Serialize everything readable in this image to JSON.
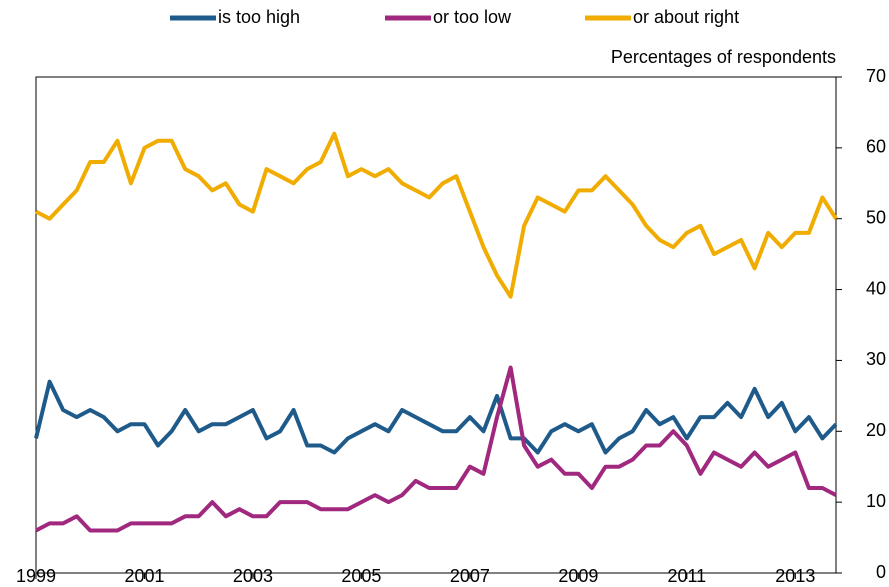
{
  "chart_data": {
    "type": "line",
    "y_label": "Percentages  of respondents",
    "x": [
      1999,
      1999.25,
      1999.5,
      1999.75,
      2000,
      2000.25,
      2000.5,
      2000.75,
      2001,
      2001.25,
      2001.5,
      2001.75,
      2002,
      2002.25,
      2002.5,
      2002.75,
      2003,
      2003.25,
      2003.5,
      2003.75,
      2004,
      2004.25,
      2004.5,
      2004.75,
      2005,
      2005.25,
      2005.5,
      2005.75,
      2006,
      2006.25,
      2006.5,
      2006.75,
      2007,
      2007.25,
      2007.5,
      2007.75,
      2008,
      2008.25,
      2008.5,
      2008.75,
      2009,
      2009.25,
      2009.5,
      2009.75,
      2010,
      2010.25,
      2010.5,
      2010.75,
      2011,
      2011.25,
      2011.5,
      2011.75,
      2012,
      2012.25,
      2012.5,
      2012.75,
      2013,
      2013.25,
      2013.5,
      2013.75
    ],
    "series": [
      {
        "name": "is too high",
        "color": "#1f5b8a",
        "values": [
          19,
          27,
          23,
          22,
          23,
          22,
          20,
          21,
          21,
          18,
          20,
          23,
          20,
          21,
          21,
          22,
          23,
          19,
          20,
          23,
          18,
          18,
          17,
          19,
          20,
          21,
          20,
          23,
          22,
          21,
          20,
          20,
          22,
          20,
          25,
          19,
          19,
          17,
          20,
          21,
          20,
          21,
          17,
          19,
          20,
          23,
          21,
          22,
          19,
          22,
          22,
          24,
          22,
          26,
          22,
          24,
          20,
          22,
          19,
          21
        ]
      },
      {
        "name": "or too low",
        "color": "#a0287f",
        "values": [
          6,
          7,
          7,
          8,
          6,
          6,
          6,
          7,
          7,
          7,
          7,
          8,
          8,
          10,
          8,
          9,
          8,
          8,
          10,
          10,
          10,
          9,
          9,
          9,
          10,
          11,
          10,
          11,
          13,
          12,
          12,
          12,
          15,
          14,
          22,
          29,
          18,
          15,
          16,
          14,
          14,
          12,
          15,
          15,
          16,
          18,
          18,
          20,
          18,
          14,
          17,
          16,
          15,
          17,
          15,
          16,
          17,
          12,
          12,
          11
        ]
      },
      {
        "name": "or about right",
        "color": "#f0ac00",
        "values": [
          51,
          50,
          52,
          54,
          58,
          58,
          61,
          55,
          60,
          61,
          61,
          57,
          56,
          54,
          55,
          52,
          51,
          57,
          56,
          55,
          57,
          58,
          62,
          56,
          57,
          56,
          57,
          55,
          54,
          53,
          55,
          56,
          51,
          46,
          42,
          39,
          49,
          53,
          52,
          51,
          54,
          54,
          56,
          54,
          52,
          49,
          47,
          46,
          48,
          49,
          45,
          46,
          47,
          43,
          48,
          46,
          48,
          48,
          53,
          50
        ]
      }
    ],
    "xlim": [
      1999,
      2013.75
    ],
    "xticks": [
      1999,
      2001,
      2003,
      2005,
      2007,
      2009,
      2011,
      2013
    ],
    "ylim": [
      0,
      70
    ],
    "yticks": [
      0,
      10,
      20,
      30,
      40,
      50,
      60,
      70
    ],
    "y_axis_side": "right",
    "grid": false
  }
}
